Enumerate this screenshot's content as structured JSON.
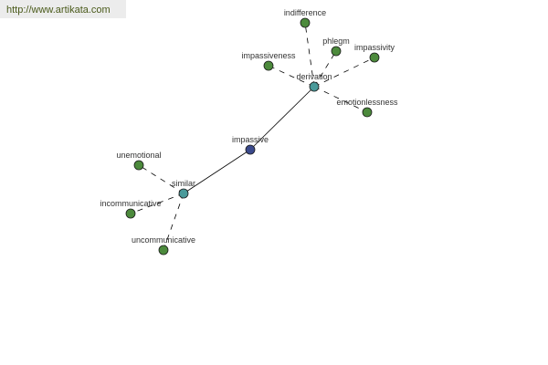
{
  "banner": {
    "url_text": "http://www.artikata.com"
  },
  "colors": {
    "center": "#3b4a8c",
    "hub": "#4a9a9a",
    "leaf": "#4c8a3c",
    "edge": "#000000"
  },
  "graph": {
    "nodes": [
      {
        "id": "impassive",
        "label": "impassive",
        "type": "center"
      },
      {
        "id": "derivation",
        "label": "derivation",
        "type": "hub"
      },
      {
        "id": "similar",
        "label": "similar",
        "type": "hub"
      },
      {
        "id": "indifference",
        "label": "indifference",
        "type": "leaf"
      },
      {
        "id": "phlegm",
        "label": "phlegm",
        "type": "leaf"
      },
      {
        "id": "impassivity",
        "label": "impassivity",
        "type": "leaf"
      },
      {
        "id": "impassiveness",
        "label": "impassiveness",
        "type": "leaf"
      },
      {
        "id": "emotionlessness",
        "label": "emotionlessness",
        "type": "leaf"
      },
      {
        "id": "unemotional",
        "label": "unemotional",
        "type": "leaf"
      },
      {
        "id": "incommunicative",
        "label": "incommunicative",
        "type": "leaf"
      },
      {
        "id": "uncommunicative",
        "label": "uncommunicative",
        "type": "leaf"
      }
    ],
    "edges": [
      {
        "from": "impassive",
        "to": "derivation",
        "style": "solid"
      },
      {
        "from": "impassive",
        "to": "similar",
        "style": "solid"
      },
      {
        "from": "derivation",
        "to": "indifference",
        "style": "dashed"
      },
      {
        "from": "derivation",
        "to": "phlegm",
        "style": "dashed"
      },
      {
        "from": "derivation",
        "to": "impassivity",
        "style": "dashed"
      },
      {
        "from": "derivation",
        "to": "impassiveness",
        "style": "dashed"
      },
      {
        "from": "derivation",
        "to": "emotionlessness",
        "style": "dashed"
      },
      {
        "from": "similar",
        "to": "unemotional",
        "style": "dashed"
      },
      {
        "from": "similar",
        "to": "incommunicative",
        "style": "dashed"
      },
      {
        "from": "similar",
        "to": "uncommunicative",
        "style": "dashed"
      }
    ]
  }
}
